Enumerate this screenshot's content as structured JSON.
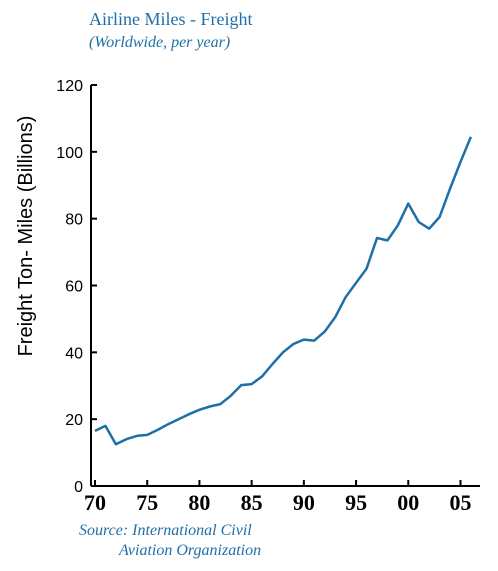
{
  "chart_data": {
    "type": "line",
    "title": "Airline Miles - Freight",
    "subtitle": "(Worldwide, per year)",
    "ylabel": "Freight Ton- Miles (Billions)",
    "xlabel": "",
    "source_line1": "Source: International Civil",
    "source_line2": "Aviation Organization",
    "ylim": [
      0,
      120
    ],
    "xlim": [
      1970,
      2008
    ],
    "yticks": [
      0,
      20,
      40,
      60,
      80,
      100,
      120
    ],
    "xticks": [
      {
        "value": 1970,
        "label": "70"
      },
      {
        "value": 1975,
        "label": "75"
      },
      {
        "value": 1980,
        "label": "80"
      },
      {
        "value": 1985,
        "label": "85"
      },
      {
        "value": 1990,
        "label": "90"
      },
      {
        "value": 1995,
        "label": "95"
      },
      {
        "value": 2000,
        "label": "00"
      },
      {
        "value": 2005,
        "label": "05"
      }
    ],
    "grid": false,
    "line_color": "#1e6fa8",
    "series": [
      {
        "x": [
          1970,
          1971,
          1972,
          1973,
          1974,
          1975,
          1976,
          1977,
          1978,
          1979,
          1980,
          1981,
          1982,
          1983,
          1984,
          1985,
          1986,
          1987,
          1988,
          1989,
          1990,
          1991,
          1992,
          1993,
          1994,
          1995,
          1996,
          1997,
          1998,
          1999,
          2000,
          2001,
          2002,
          2003,
          2004,
          2005,
          2006
        ],
        "y": [
          16.5,
          18,
          12.5,
          14,
          15,
          15.3,
          16.8,
          18.5,
          20,
          21.5,
          22.8,
          23.8,
          24.5,
          27,
          30.2,
          30.5,
          32.8,
          36.5,
          40,
          42.5,
          43.8,
          43.5,
          46.2,
          50.5,
          56.5,
          60.8,
          65,
          74.2,
          73.5,
          78,
          84.5,
          79,
          77,
          80.5,
          89,
          97,
          104.5
        ]
      }
    ]
  }
}
